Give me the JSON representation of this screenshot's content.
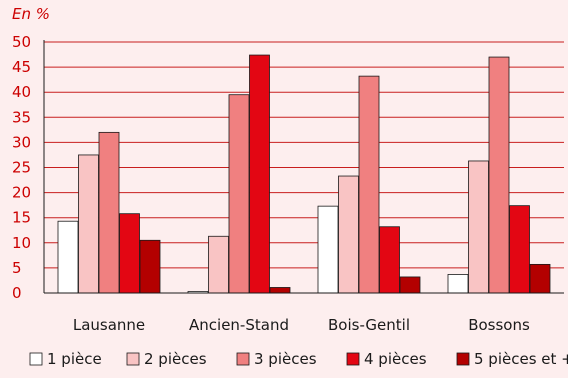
{
  "chart_data": {
    "type": "bar",
    "title": "",
    "unit_label": "En %",
    "xlabel": "",
    "ylabel": "",
    "ylim": [
      0,
      50
    ],
    "yticks": [
      0,
      5,
      10,
      15,
      20,
      25,
      30,
      35,
      40,
      45,
      50
    ],
    "grid": true,
    "legend_position": "bottom",
    "categories": [
      "Lausanne",
      "Ancien-Stand",
      "Bois-Gentil",
      "Bossons"
    ],
    "series": [
      {
        "name": "1 pièce",
        "color": "#ffffff",
        "values": [
          14.3,
          0.3,
          17.3,
          3.7
        ]
      },
      {
        "name": "2 pièces",
        "color": "#f9c4c4",
        "values": [
          27.5,
          11.3,
          23.3,
          26.3
        ]
      },
      {
        "name": "3 pièces",
        "color": "#f08080",
        "values": [
          32.0,
          39.5,
          43.2,
          47.0
        ]
      },
      {
        "name": "4 pièces",
        "color": "#e30613",
        "values": [
          15.8,
          47.4,
          13.2,
          17.4
        ]
      },
      {
        "name": "5 pièces et +",
        "color": "#b30000",
        "values": [
          10.5,
          1.1,
          3.2,
          5.7
        ]
      }
    ]
  }
}
